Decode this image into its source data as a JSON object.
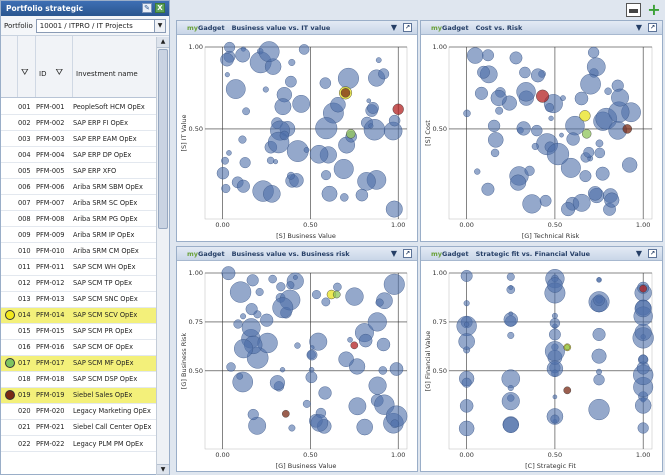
{
  "left": {
    "title": "Portfolio strategic",
    "portfolio_label": "Portfolio",
    "portfolio_value": "10001 / ITPRO / IT Projects",
    "col_id": "ID",
    "col_name": "Investment name",
    "rows": [
      {
        "n": "001",
        "id": "PFM-001",
        "name": "PeopleSoft HCM OpEx",
        "marker": null
      },
      {
        "n": "002",
        "id": "PFM-002",
        "name": "SAP ERP FI OpEx",
        "marker": null
      },
      {
        "n": "003",
        "id": "PFM-003",
        "name": "SAP ERP EAM OpEx",
        "marker": null
      },
      {
        "n": "004",
        "id": "PFM-004",
        "name": "SAP ERP DP OpEx",
        "marker": null
      },
      {
        "n": "005",
        "id": "PFM-005",
        "name": "SAP ERP XFO",
        "marker": null
      },
      {
        "n": "006",
        "id": "PFM-006",
        "name": "Ariba SRM SBM OpEx",
        "marker": null
      },
      {
        "n": "007",
        "id": "PFM-007",
        "name": "Ariba SRM SC OpEx",
        "marker": null
      },
      {
        "n": "008",
        "id": "PFM-008",
        "name": "Ariba SRM PG OpEx",
        "marker": null
      },
      {
        "n": "009",
        "id": "PFM-009",
        "name": "Ariba SRM IP OpEx",
        "marker": null
      },
      {
        "n": "010",
        "id": "PFM-010",
        "name": "Ariba SRM CM OpEx",
        "marker": null
      },
      {
        "n": "011",
        "id": "PFM-011",
        "name": "SAP SCM WH OpEx",
        "marker": null
      },
      {
        "n": "012",
        "id": "PFM-012",
        "name": "SAP SCM TP OpEx",
        "marker": null
      },
      {
        "n": "013",
        "id": "PFM-013",
        "name": "SAP SCM SNC OpEx",
        "marker": null
      },
      {
        "n": "014",
        "id": "PFM-014",
        "name": "SAP SCM SCV OpEx",
        "marker": "#f1e81b"
      },
      {
        "n": "015",
        "id": "PFM-015",
        "name": "SAP SCM PR OpEx",
        "marker": null
      },
      {
        "n": "016",
        "id": "PFM-016",
        "name": "SAP SCM OF OpEx",
        "marker": null
      },
      {
        "n": "017",
        "id": "PFM-017",
        "name": "SAP SCM MF OpEx",
        "marker": "#7ec460"
      },
      {
        "n": "018",
        "id": "PFM-018",
        "name": "SAP SCM DSP OpEx",
        "marker": null
      },
      {
        "n": "019",
        "id": "PFM-019",
        "name": "Siebel Sales OpEx",
        "marker": "#7a2a14"
      },
      {
        "n": "020",
        "id": "PFM-020",
        "name": "Legacy Marketing OpEx",
        "marker": null
      },
      {
        "n": "021",
        "id": "PFM-021",
        "name": "Siebel Call Center OpEx",
        "marker": null
      },
      {
        "n": "022",
        "id": "PFM-022",
        "name": "Legacy PLM PM OpEx",
        "marker": null
      }
    ]
  },
  "gadget_brand_prefix": "my",
  "gadget_brand_suffix": "Gadget",
  "gadgets": [
    {
      "title": "Business value vs. IT value",
      "xlabel": "[S] Business Value",
      "ylabel": "[S] IT Value",
      "xticks": [
        "0.00",
        "0.50",
        "1.00"
      ],
      "yticks": [
        "0.50",
        "1.00"
      ],
      "hl": {
        "yellow": [
          0.7,
          0.72,
          0.07
        ],
        "green": [
          0.73,
          0.47,
          0.05
        ],
        "red": [
          1.0,
          0.62,
          0.06
        ],
        "brown": [
          0.7,
          0.72,
          0.05
        ]
      }
    },
    {
      "title": "Cost vs. Risk",
      "xlabel": "[G] Technical Risk",
      "ylabel": "[S] Cost",
      "xticks": [
        "0.00",
        "0.50",
        "1.00"
      ],
      "yticks": [
        "0.50",
        "1.00"
      ],
      "hl": {
        "yellow": [
          0.67,
          0.58,
          0.06
        ],
        "green": [
          0.68,
          0.47,
          0.05
        ],
        "red": [
          0.43,
          0.7,
          0.07
        ],
        "brown": [
          0.91,
          0.5,
          0.05
        ]
      }
    },
    {
      "title": "Business value vs. Business risk",
      "xlabel": "[G] Business Value",
      "ylabel": "[G] Business Risk",
      "xticks": [
        "0.00",
        "0.50",
        "1.00"
      ],
      "yticks": [
        "0.50",
        "0.75",
        "1.00"
      ],
      "hl": {
        "yellow": [
          0.62,
          0.89,
          0.05
        ],
        "green": [
          0.65,
          0.89,
          0.04
        ],
        "red": [
          0.75,
          0.63,
          0.04
        ],
        "brown": [
          0.36,
          0.28,
          0.04
        ]
      }
    },
    {
      "title": "Strategic fit vs. Financial Value",
      "xlabel": "[C] Strategic Fit",
      "ylabel": "[G] Financial Value",
      "xticks": [
        "0.00",
        "0.50",
        "1.00"
      ],
      "yticks": [
        "0.50",
        "0.75",
        "1.00"
      ],
      "hl": {
        "yellow": [
          0.57,
          0.62,
          0.04
        ],
        "green": [
          0.57,
          0.62,
          0.03
        ],
        "red": [
          1.0,
          0.92,
          0.04
        ],
        "brown": [
          0.57,
          0.4,
          0.04
        ]
      }
    }
  ]
}
